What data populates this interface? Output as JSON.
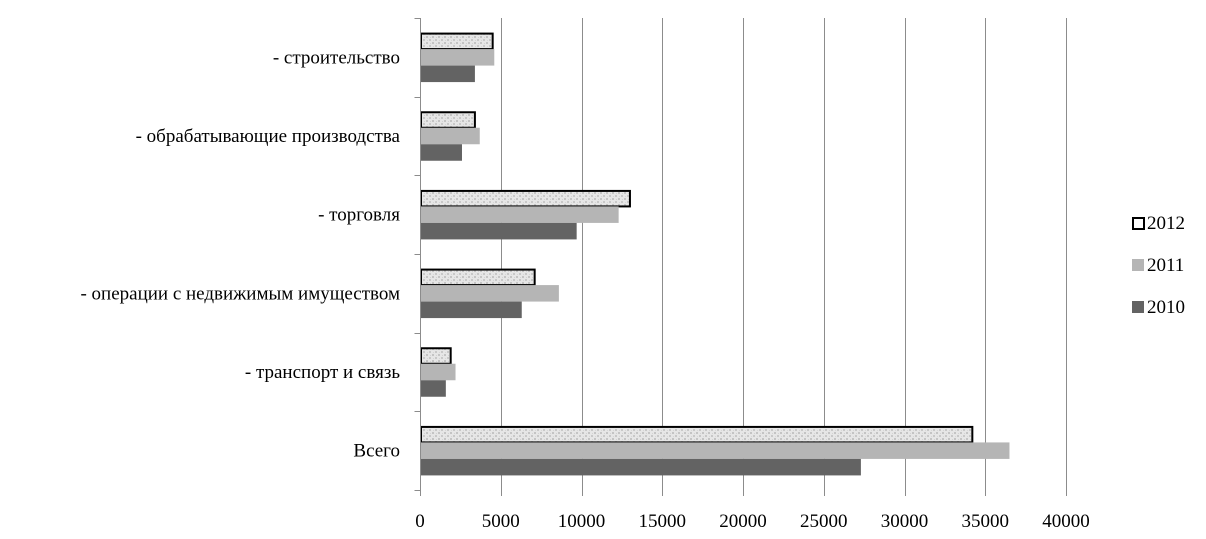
{
  "chart_data": {
    "type": "bar",
    "orientation": "horizontal",
    "title": "",
    "xlabel": "",
    "ylabel": "",
    "categories": [
      "Всего",
      "- транспорт и связь",
      "- операции с  недвижимым имуществом",
      "- торговля",
      "- обрабатывающие производства",
      "- строительство"
    ],
    "series": [
      {
        "name": "2010",
        "values": [
          27300,
          1600,
          6300,
          9700,
          2600,
          3400
        ]
      },
      {
        "name": "2011",
        "values": [
          36500,
          2200,
          8600,
          12300,
          3700,
          4600
        ]
      },
      {
        "name": "2012",
        "values": [
          34200,
          1900,
          7100,
          13000,
          3400,
          4500
        ]
      }
    ],
    "xlim": [
      0,
      40000
    ],
    "xticks": [
      0,
      5000,
      10000,
      15000,
      20000,
      25000,
      30000,
      35000,
      40000
    ],
    "grid": "vertical",
    "legend": {
      "position": "right",
      "order": [
        "2012",
        "2011",
        "2010"
      ]
    },
    "colors": {
      "2010": "#636363",
      "2011": "#b5b5b5",
      "2012": "#e4e4e4",
      "2012_border": "#000000",
      "grid": "#8c8c8c",
      "axis": "#8c8c8c"
    }
  }
}
